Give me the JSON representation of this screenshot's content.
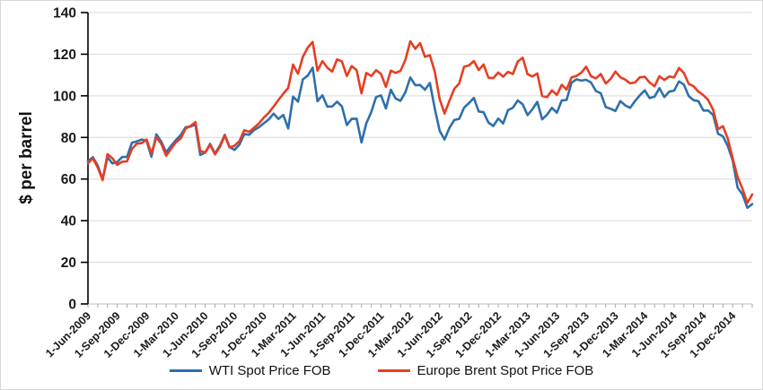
{
  "chart_data": {
    "type": "line",
    "title": "",
    "xlabel": "",
    "ylabel": "$ per barrel",
    "ylim": [
      0,
      140
    ],
    "y_ticks": [
      0,
      20,
      40,
      60,
      80,
      100,
      120,
      140
    ],
    "grid": "horizontal",
    "grid_color": "#d9d9d9",
    "axis_color": "#000000",
    "x_axis_line_color": "#bfbfbf",
    "tick_color": "#a6a6a6",
    "legend_position": "bottom-center",
    "x_start": "1-Jun-2009",
    "x_interval": "semi-monthly",
    "x_total_months": 68,
    "x_tick_months": [
      0,
      3,
      6,
      9,
      12,
      15,
      18,
      21,
      24,
      27,
      30,
      33,
      36,
      39,
      42,
      45,
      48,
      51,
      54,
      57,
      60,
      63,
      66
    ],
    "x_tick_labels": [
      "1-Jun-2009",
      "1-Sep-2009",
      "1-Dec-2009",
      "1-Mar-2010",
      "1-Jun-2010",
      "1-Sep-2010",
      "1-Dec-2010",
      "1-Mar-2011",
      "1-Jun-2011",
      "1-Sep-2011",
      "1-Dec-2011",
      "1-Mar-2012",
      "1-Jun-2012",
      "1-Sep-2012",
      "1-Dec-2012",
      "1-Mar-2013",
      "1-Jun-2013",
      "1-Sep-2013",
      "1-Dec-2013",
      "1-Mar-2014",
      "1-Jun-2014",
      "1-Sep-2014",
      "1-Dec-2014"
    ],
    "series": [
      {
        "name": "WTI Spot Price FOB",
        "color": "#2e6fad",
        "values": [
          68.5,
          70.5,
          66.5,
          59.8,
          70.5,
          67.5,
          68.2,
          70.6,
          70.6,
          77.5,
          78.1,
          79.0,
          78.4,
          70.7,
          81.5,
          78.0,
          72.9,
          75.9,
          78.7,
          81.2,
          84.9,
          85.2,
          86.2,
          71.6,
          72.7,
          76.9,
          72.3,
          76.0,
          81.3,
          75.4,
          74.0,
          76.5,
          81.6,
          81.3,
          83.5,
          84.9,
          86.8,
          88.6,
          91.4,
          88.9,
          90.8,
          84.3,
          99.6,
          97.2,
          107.9,
          109.7,
          113.5,
          97.4,
          100.3,
          94.8,
          94.9,
          97.2,
          94.9,
          86.0,
          88.9,
          89.0,
          77.6,
          86.8,
          92.2,
          99.4,
          100.2,
          93.9,
          102.9,
          98.7,
          97.6,
          101.8,
          108.8,
          105.1,
          105.2,
          102.9,
          106.2,
          94.0,
          83.2,
          79.0,
          84.5,
          88.4,
          88.9,
          94.3,
          96.5,
          99.0,
          92.5,
          92.1,
          87.1,
          85.5,
          89.1,
          86.7,
          93.1,
          94.3,
          97.8,
          95.9,
          90.7,
          93.5,
          97.1,
          88.7,
          91.0,
          94.2,
          91.9,
          97.8,
          98.0,
          106.3,
          107.9,
          107.3,
          107.7,
          106.4,
          102.3,
          101.2,
          94.6,
          93.8,
          92.7,
          97.5,
          95.4,
          94.2,
          97.5,
          100.3,
          102.6,
          98.9,
          99.6,
          103.7,
          99.4,
          102.0,
          102.5,
          106.9,
          105.4,
          99.9,
          97.9,
          97.4,
          92.9,
          92.9,
          90.7,
          81.8,
          80.5,
          75.8,
          69.0,
          55.9,
          52.7,
          46.2,
          48.0
        ]
      },
      {
        "name": "Europe Brent Spot Price FOB",
        "color": "#e63e22",
        "values": [
          67.5,
          70.0,
          65.5,
          59.5,
          72.0,
          70.0,
          66.8,
          68.3,
          68.5,
          74.5,
          77.0,
          77.3,
          79.0,
          72.3,
          80.1,
          77.0,
          71.2,
          74.5,
          77.6,
          79.5,
          84.3,
          85.5,
          87.4,
          73.5,
          72.8,
          76.5,
          71.9,
          75.4,
          80.9,
          75.2,
          76.0,
          78.2,
          83.5,
          82.7,
          84.6,
          86.7,
          89.5,
          91.8,
          94.8,
          98.0,
          101.0,
          103.8,
          115.0,
          110.6,
          118.7,
          123.2,
          125.9,
          112.1,
          116.7,
          113.5,
          111.6,
          117.5,
          116.5,
          109.5,
          114.3,
          112.3,
          101.2,
          111.0,
          109.5,
          112.3,
          110.5,
          104.3,
          112.1,
          111.0,
          112.0,
          117.4,
          126.2,
          122.6,
          125.3,
          118.7,
          119.5,
          111.7,
          98.4,
          91.5,
          97.5,
          103.4,
          105.9,
          114.0,
          114.6,
          116.7,
          112.4,
          115.0,
          108.7,
          108.5,
          111.2,
          109.2,
          111.5,
          110.5,
          116.5,
          118.3,
          110.4,
          109.3,
          110.7,
          99.9,
          99.4,
          102.6,
          100.4,
          105.3,
          103.0,
          108.8,
          109.5,
          111.1,
          114.0,
          109.4,
          108.4,
          110.5,
          105.9,
          108.1,
          111.6,
          108.9,
          107.8,
          106.0,
          106.4,
          108.9,
          109.1,
          106.4,
          104.6,
          109.4,
          107.6,
          109.3,
          108.8,
          113.4,
          111.0,
          105.7,
          104.6,
          102.0,
          100.3,
          97.9,
          93.2,
          84.0,
          85.4,
          79.4,
          70.0,
          61.0,
          55.4,
          48.5,
          52.6
        ]
      }
    ]
  },
  "legend": {
    "items": [
      {
        "label": "WTI Spot Price FOB"
      },
      {
        "label": "Europe Brent Spot Price FOB"
      }
    ]
  }
}
